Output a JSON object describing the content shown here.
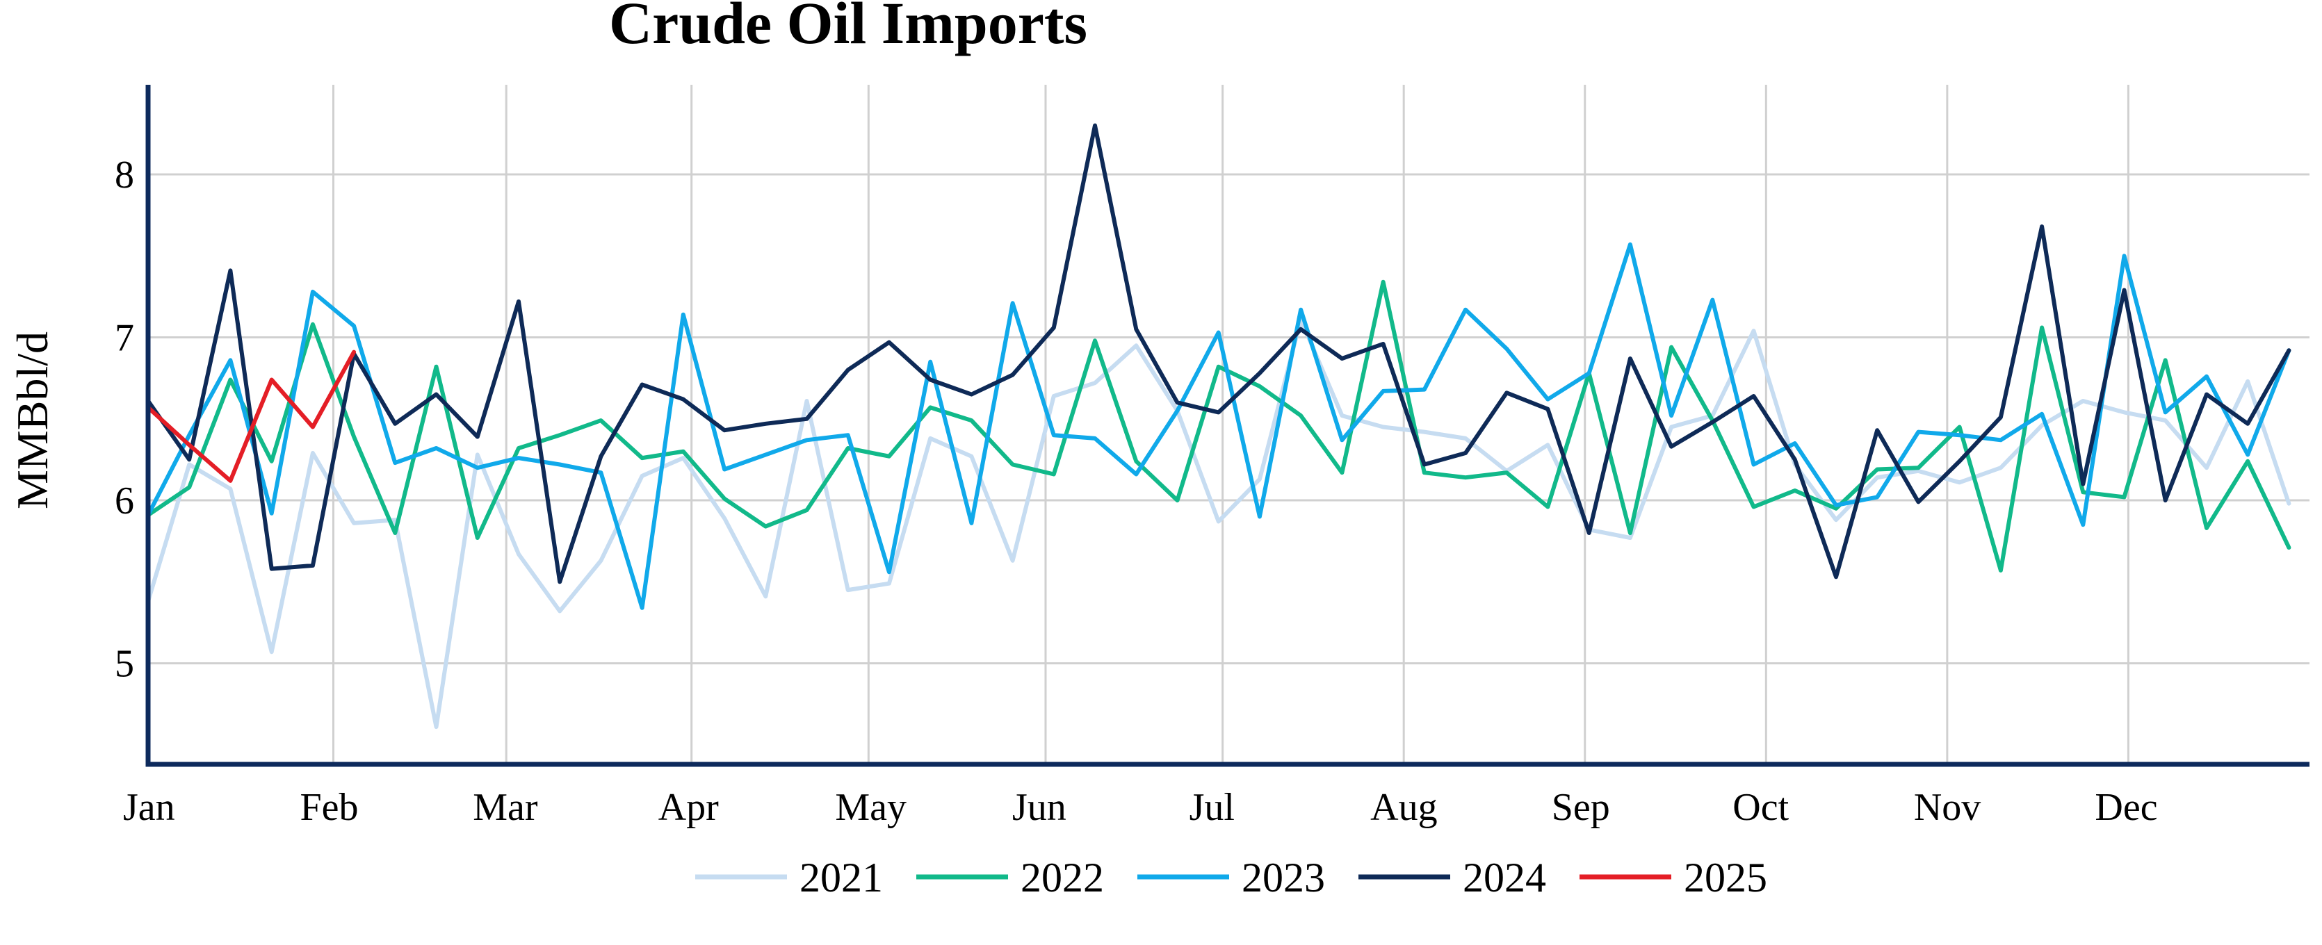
{
  "chart_data": {
    "type": "line",
    "title": "Crude Oil Imports",
    "xlabel": "",
    "ylabel": "MMBbl/d",
    "xlim": [
      0,
      52.5
    ],
    "ylim": [
      4.38,
      8.55
    ],
    "yticks": [
      5,
      6,
      7,
      8
    ],
    "month_labels": [
      "Jan",
      "Feb",
      "Mar",
      "Apr",
      "May",
      "Jun",
      "Jul",
      "Aug",
      "Sep",
      "Oct",
      "Nov",
      "Dec"
    ],
    "month_positions": [
      0,
      4.5,
      8.7,
      13.2,
      17.5,
      21.8,
      26.1,
      30.5,
      34.9,
      39.3,
      43.7,
      48.1
    ],
    "grid": true,
    "legend_position": "bottom",
    "series": [
      {
        "name": "2021",
        "color": "#c6dcf1",
        "x": [
          0,
          1,
          2,
          3,
          4,
          5,
          6,
          7,
          8,
          9,
          10,
          11,
          12,
          13,
          14,
          15,
          16,
          17,
          18,
          19,
          20,
          21,
          22,
          23,
          24,
          25,
          26,
          27,
          28,
          29,
          30,
          31,
          32,
          33,
          34,
          35,
          36,
          37,
          38,
          39,
          40,
          41,
          42,
          43,
          44,
          45,
          46,
          47,
          48,
          49,
          50,
          51,
          52
        ],
        "values": [
          5.38,
          6.22,
          6.07,
          5.07,
          6.29,
          5.86,
          5.88,
          4.61,
          6.28,
          5.67,
          5.32,
          5.63,
          6.15,
          6.26,
          5.89,
          5.41,
          6.61,
          5.45,
          5.49,
          6.38,
          6.27,
          5.63,
          6.64,
          6.72,
          6.95,
          6.55,
          5.87,
          6.13,
          7.11,
          6.52,
          6.45,
          6.42,
          6.38,
          6.18,
          6.34,
          5.82,
          5.77,
          6.45,
          6.52,
          7.04,
          6.22,
          5.88,
          6.14,
          6.18,
          6.11,
          6.2,
          6.46,
          6.61,
          6.54,
          6.49,
          6.2,
          6.73,
          5.98
        ]
      },
      {
        "name": "2022",
        "color": "#11b98a",
        "x": [
          0,
          1,
          2,
          3,
          4,
          5,
          6,
          7,
          8,
          9,
          10,
          11,
          12,
          13,
          14,
          15,
          16,
          17,
          18,
          19,
          20,
          21,
          22,
          23,
          24,
          25,
          26,
          27,
          28,
          29,
          30,
          31,
          32,
          33,
          34,
          35,
          36,
          37,
          38,
          39,
          40,
          41,
          42,
          43,
          44,
          45,
          46,
          47,
          48,
          49,
          50,
          51,
          52
        ],
        "values": [
          5.91,
          6.08,
          6.74,
          6.24,
          7.08,
          6.39,
          5.8,
          6.82,
          5.77,
          6.32,
          6.4,
          6.49,
          6.26,
          6.3,
          6.01,
          5.84,
          5.94,
          6.32,
          6.27,
          6.57,
          6.49,
          6.22,
          6.16,
          6.98,
          6.24,
          6.0,
          6.82,
          6.7,
          6.52,
          6.17,
          7.34,
          6.17,
          6.14,
          6.17,
          5.96,
          6.78,
          5.8,
          6.94,
          6.49,
          5.96,
          6.06,
          5.95,
          6.19,
          6.2,
          6.45,
          5.57,
          7.06,
          6.05,
          6.02,
          6.86,
          5.83,
          6.24,
          5.71
        ]
      },
      {
        "name": "2023",
        "color": "#10a9ea",
        "x": [
          0,
          1,
          2,
          3,
          4,
          5,
          6,
          7,
          8,
          9,
          10,
          11,
          12,
          13,
          14,
          15,
          16,
          17,
          18,
          19,
          20,
          21,
          22,
          23,
          24,
          25,
          26,
          27,
          28,
          29,
          30,
          31,
          32,
          33,
          34,
          35,
          36,
          37,
          38,
          39,
          40,
          41,
          42,
          43,
          44,
          45,
          46,
          47,
          48,
          49,
          50,
          51,
          52
        ],
        "values": [
          5.91,
          6.4,
          6.86,
          5.92,
          7.28,
          7.07,
          6.23,
          6.32,
          6.2,
          6.26,
          6.22,
          6.17,
          5.34,
          7.14,
          6.19,
          6.28,
          6.37,
          6.4,
          5.56,
          6.85,
          5.86,
          7.21,
          6.4,
          6.38,
          6.16,
          6.55,
          7.03,
          5.9,
          7.17,
          6.37,
          6.67,
          6.68,
          7.17,
          6.93,
          6.62,
          6.78,
          7.57,
          6.52,
          7.23,
          6.22,
          6.35,
          5.97,
          6.02,
          6.42,
          6.4,
          6.37,
          6.53,
          5.85,
          7.5,
          6.54,
          6.76,
          6.28,
          6.92
        ]
      },
      {
        "name": "2024",
        "color": "#0e2a57",
        "x": [
          0,
          1,
          2,
          3,
          4,
          5,
          6,
          7,
          8,
          9,
          10,
          11,
          12,
          13,
          14,
          15,
          16,
          17,
          18,
          19,
          20,
          21,
          22,
          23,
          24,
          25,
          26,
          27,
          28,
          29,
          30,
          31,
          32,
          33,
          34,
          35,
          36,
          37,
          38,
          39,
          40,
          41,
          42,
          43,
          44,
          45,
          46,
          47,
          48,
          49,
          50,
          51,
          52
        ],
        "values": [
          6.61,
          6.25,
          7.41,
          5.58,
          5.6,
          6.9,
          6.47,
          6.65,
          6.39,
          7.22,
          5.5,
          6.27,
          6.71,
          6.62,
          6.43,
          6.47,
          6.5,
          6.8,
          6.97,
          6.74,
          6.65,
          6.77,
          7.06,
          8.3,
          7.05,
          6.6,
          6.54,
          6.78,
          7.05,
          6.87,
          6.96,
          6.22,
          6.29,
          6.66,
          6.56,
          5.8,
          6.87,
          6.33,
          6.48,
          6.64,
          6.25,
          5.53,
          6.43,
          5.99,
          6.24,
          6.51,
          7.68,
          6.1,
          7.29,
          6.0,
          6.65,
          6.47,
          6.92
        ]
      },
      {
        "name": "2025",
        "color": "#e41e26",
        "x": [
          0,
          1,
          2,
          3,
          4,
          5
        ],
        "values": [
          6.57,
          6.34,
          6.12,
          6.74,
          6.45,
          6.91
        ]
      }
    ]
  }
}
